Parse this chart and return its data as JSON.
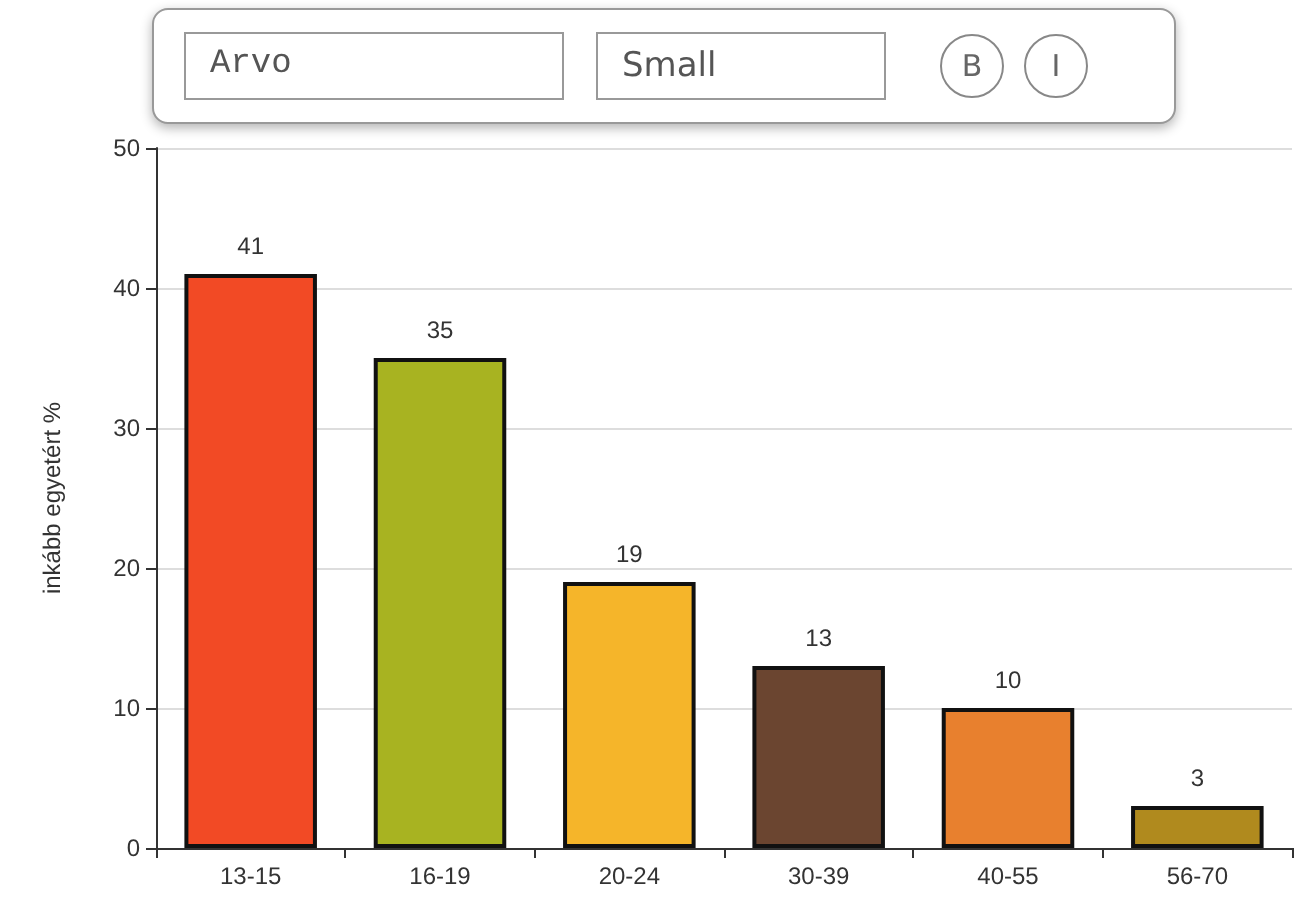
{
  "chart_data": {
    "type": "bar",
    "ylabel": "inkább egyetért %",
    "categories": [
      "13-15",
      "16-19",
      "20-24",
      "30-39",
      "40-55",
      "56-70"
    ],
    "values": [
      41,
      35,
      19,
      13,
      10,
      3
    ],
    "colors": [
      "#f24a25",
      "#a8b321",
      "#f5b52a",
      "#6b4530",
      "#e8802e",
      "#b08a1e"
    ],
    "ylim": [
      0,
      50
    ],
    "yticks": [
      0,
      10,
      20,
      30,
      40,
      50
    ],
    "grid": "y",
    "data_labels": true,
    "annotations": [
      "Arvo",
      "Small",
      "B",
      "I"
    ]
  }
}
